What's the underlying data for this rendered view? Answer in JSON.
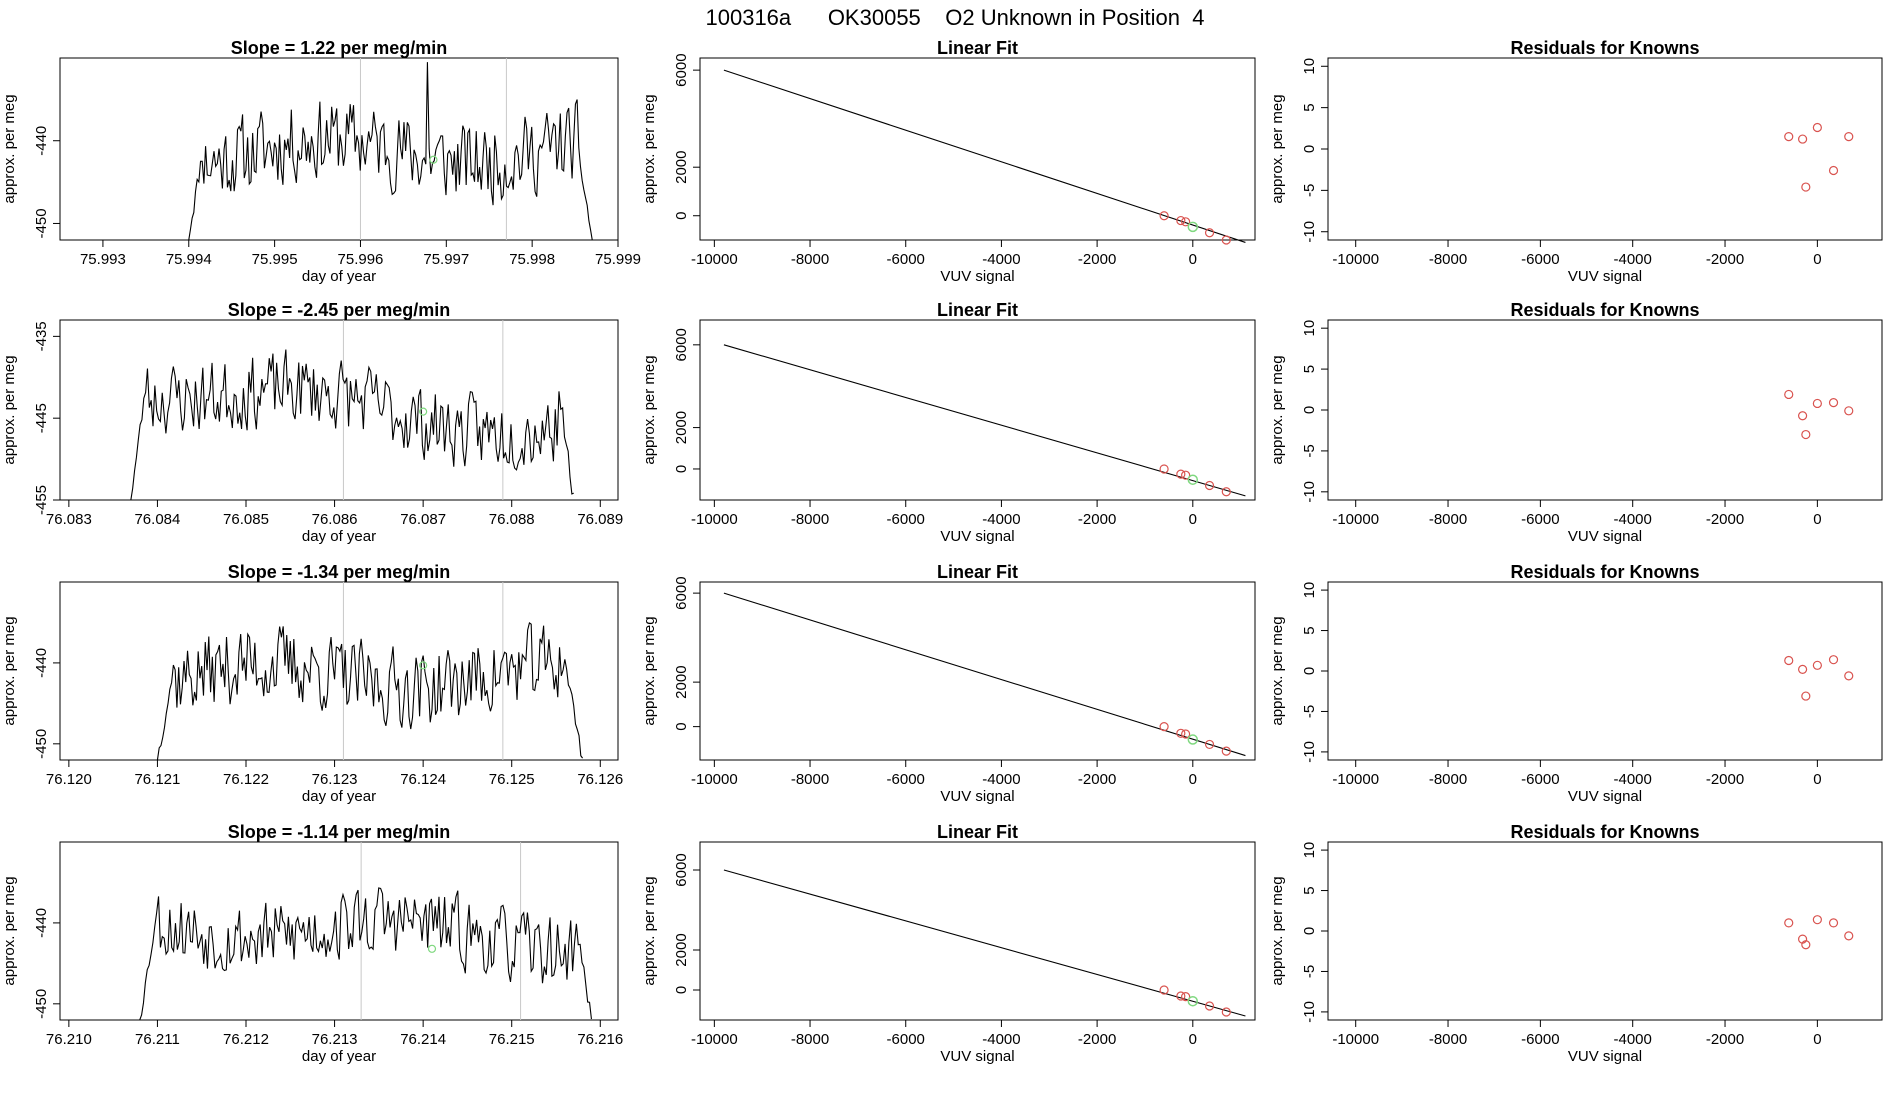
{
  "figure_title": "100316a      OK30055    O2 Unknown in Position  4",
  "colors": {
    "trace": "#000000",
    "marker_unknown": "#7fd87f",
    "marker_known": "#d9534f",
    "vline": "#c8c8c8",
    "axis": "#000000"
  },
  "chart_data": [
    {
      "type": "line",
      "row": 0,
      "title": "Slope =  1.22  per meg/min",
      "xlabel": "day of year",
      "ylabel": "approx. per meg",
      "xlim": [
        75.9925,
        75.999
      ],
      "ylim": [
        -452,
        -430
      ],
      "xticks": [
        "75.993",
        "75.994",
        "75.995",
        "75.996",
        "75.997",
        "75.998",
        "75.999"
      ],
      "yticks": [
        "-440",
        "-450"
      ],
      "trace": {
        "start": 75.994,
        "end": 75.9987,
        "base": -441.2,
        "amp": 2.8,
        "seed": 11,
        "drift": 0.0,
        "rise_from": -451.5,
        "fall_to": -452
      },
      "vlines": [
        75.996,
        75.9977
      ],
      "green_point": [
        75.99685,
        -442.3
      ],
      "spike": [
        75.99678,
        -430.5
      ]
    },
    {
      "type": "line",
      "row": 1,
      "title": "Slope =  -2.45  per meg/min",
      "xlabel": "day of year",
      "ylabel": "approx. per meg",
      "xlim": [
        76.0829,
        76.0892
      ],
      "ylim": [
        -455,
        -433
      ],
      "xticks": [
        "76.083",
        "76.084",
        "76.085",
        "76.086",
        "76.087",
        "76.088",
        "76.089"
      ],
      "yticks": [
        "-435",
        "-445",
        "-455"
      ],
      "trace": {
        "start": 76.0837,
        "end": 76.0887,
        "base": -440.6,
        "amp": 2.6,
        "seed": 23,
        "drift": -6.0,
        "rise_from": -455,
        "fall_to": -455
      },
      "vlines": [
        76.0861,
        76.0879
      ],
      "green_point": [
        76.087,
        -444.2
      ]
    },
    {
      "type": "line",
      "row": 2,
      "title": "Slope =  -1.34  per meg/min",
      "xlabel": "day of year",
      "ylabel": "approx. per meg",
      "xlim": [
        76.1199,
        76.1262
      ],
      "ylim": [
        -452,
        -430
      ],
      "xticks": [
        "76.120",
        "76.121",
        "76.122",
        "76.123",
        "76.124",
        "76.125",
        "76.126"
      ],
      "yticks": [
        "-440",
        "-450"
      ],
      "trace": {
        "start": 76.121,
        "end": 76.1258,
        "base": -441.6,
        "amp": 2.8,
        "seed": 37,
        "drift": 0.0,
        "rise_from": -452,
        "fall_to": -452
      },
      "vlines": [
        76.1231,
        76.1249
      ],
      "green_point": [
        76.124,
        -440.3
      ]
    },
    {
      "type": "line",
      "row": 3,
      "title": "Slope =  -1.14  per meg/min",
      "xlabel": "day of year",
      "ylabel": "approx. per meg",
      "xlim": [
        76.2099,
        76.2162
      ],
      "ylim": [
        -452,
        -430
      ],
      "xticks": [
        "76.210",
        "76.211",
        "76.212",
        "76.213",
        "76.214",
        "76.215",
        "76.216"
      ],
      "yticks": [
        "-440",
        "-450"
      ],
      "trace": {
        "start": 76.2108,
        "end": 76.2159,
        "base": -439.8,
        "amp": 2.6,
        "seed": 53,
        "drift": -2.5,
        "rise_from": -452,
        "fall_to": -452
      },
      "vlines": [
        76.2133,
        76.2151
      ],
      "green_point": [
        76.2141,
        -443.2
      ]
    },
    {
      "type": "scatter",
      "row": 0,
      "title": "Linear Fit",
      "xlabel": "VUV signal",
      "ylabel": "approx. per meg",
      "xlim": [
        -10300,
        1300
      ],
      "ylim": [
        -1000,
        6500
      ],
      "xticks": [
        -10000,
        -8000,
        -6000,
        -4000,
        -2000,
        0
      ],
      "yticks": [
        0,
        2000,
        6000
      ],
      "line": [
        [
          -9800,
          6000
        ],
        [
          1100,
          -1100
        ]
      ],
      "known_points": [
        [
          -600,
          0
        ],
        [
          -250,
          -200
        ],
        [
          -150,
          -250
        ],
        [
          350,
          -700
        ],
        [
          700,
          -1000
        ]
      ],
      "unknown_point": [
        0,
        -460
      ]
    },
    {
      "type": "scatter",
      "row": 1,
      "title": "Linear Fit",
      "xlabel": "VUV signal",
      "ylabel": "approx. per meg",
      "xlim": [
        -10300,
        1300
      ],
      "ylim": [
        -1500,
        7200
      ],
      "xticks": [
        -10000,
        -8000,
        -6000,
        -4000,
        -2000,
        0
      ],
      "yticks": [
        0,
        2000,
        6000
      ],
      "line": [
        [
          -9800,
          6000
        ],
        [
          1100,
          -1300
        ]
      ],
      "known_points": [
        [
          -600,
          0
        ],
        [
          -250,
          -250
        ],
        [
          -150,
          -300
        ],
        [
          350,
          -800
        ],
        [
          700,
          -1100
        ]
      ],
      "unknown_point": [
        0,
        -520
      ]
    },
    {
      "type": "scatter",
      "row": 2,
      "title": "Linear Fit",
      "xlabel": "VUV signal",
      "ylabel": "approx. per meg",
      "xlim": [
        -10300,
        1300
      ],
      "ylim": [
        -1500,
        6500
      ],
      "xticks": [
        -10000,
        -8000,
        -6000,
        -4000,
        -2000,
        0
      ],
      "yticks": [
        0,
        2000,
        6000
      ],
      "line": [
        [
          -9800,
          6000
        ],
        [
          1100,
          -1300
        ]
      ],
      "known_points": [
        [
          -600,
          0
        ],
        [
          -250,
          -300
        ],
        [
          -150,
          -330
        ],
        [
          350,
          -800
        ],
        [
          700,
          -1100
        ]
      ],
      "unknown_point": [
        0,
        -580
      ]
    },
    {
      "type": "scatter",
      "row": 3,
      "title": "Linear Fit",
      "xlabel": "VUV signal",
      "ylabel": "approx. per meg",
      "xlim": [
        -10300,
        1300
      ],
      "ylim": [
        -1500,
        7400
      ],
      "xticks": [
        -10000,
        -8000,
        -6000,
        -4000,
        -2000,
        0
      ],
      "yticks": [
        0,
        2000,
        6000
      ],
      "line": [
        [
          -9800,
          6000
        ],
        [
          1100,
          -1300
        ]
      ],
      "known_points": [
        [
          -600,
          0
        ],
        [
          -250,
          -300
        ],
        [
          -150,
          -330
        ],
        [
          350,
          -800
        ],
        [
          700,
          -1100
        ]
      ],
      "unknown_point": [
        0,
        -560
      ]
    },
    {
      "type": "scatter",
      "row": 0,
      "title": "Residuals for Knowns",
      "xlabel": "VUV signal",
      "ylabel": "approx. per meg",
      "xlim": [
        -10600,
        1400
      ],
      "ylim": [
        -11,
        11
      ],
      "xticks": [
        -10000,
        -8000,
        -6000,
        -4000,
        -2000,
        0
      ],
      "yticks": [
        -10,
        -5,
        0,
        5,
        10
      ],
      "points": [
        [
          -620,
          1.5
        ],
        [
          -320,
          1.2
        ],
        [
          -250,
          -4.6
        ],
        [
          0,
          2.6
        ],
        [
          350,
          -2.6
        ],
        [
          680,
          1.5
        ]
      ]
    },
    {
      "type": "scatter",
      "row": 1,
      "title": "Residuals for Knowns",
      "xlabel": "VUV signal",
      "ylabel": "approx. per meg",
      "xlim": [
        -10600,
        1400
      ],
      "ylim": [
        -11,
        11
      ],
      "xticks": [
        -10000,
        -8000,
        -6000,
        -4000,
        -2000,
        0
      ],
      "yticks": [
        -10,
        -5,
        0,
        5,
        10
      ],
      "points": [
        [
          -620,
          1.9
        ],
        [
          -320,
          -0.7
        ],
        [
          -250,
          -3.0
        ],
        [
          0,
          0.8
        ],
        [
          350,
          0.9
        ],
        [
          680,
          -0.1
        ]
      ]
    },
    {
      "type": "scatter",
      "row": 2,
      "title": "Residuals for Knowns",
      "xlabel": "VUV signal",
      "ylabel": "approx. per meg",
      "xlim": [
        -10600,
        1400
      ],
      "ylim": [
        -11,
        11
      ],
      "xticks": [
        -10000,
        -8000,
        -6000,
        -4000,
        -2000,
        0
      ],
      "yticks": [
        -10,
        -5,
        0,
        5,
        10
      ],
      "points": [
        [
          -620,
          1.3
        ],
        [
          -320,
          0.2
        ],
        [
          -250,
          -3.1
        ],
        [
          0,
          0.7
        ],
        [
          350,
          1.4
        ],
        [
          680,
          -0.6
        ]
      ]
    },
    {
      "type": "scatter",
      "row": 3,
      "title": "Residuals for Knowns",
      "xlabel": "VUV signal",
      "ylabel": "approx. per meg",
      "xlim": [
        -10600,
        1400
      ],
      "ylim": [
        -11,
        11
      ],
      "xticks": [
        -10000,
        -8000,
        -6000,
        -4000,
        -2000,
        0
      ],
      "yticks": [
        -10,
        -5,
        0,
        5,
        10
      ],
      "points": [
        [
          -620,
          1.0
        ],
        [
          -320,
          -1.0
        ],
        [
          -250,
          -1.7
        ],
        [
          0,
          1.4
        ],
        [
          350,
          1.0
        ],
        [
          680,
          -0.6
        ]
      ]
    }
  ]
}
